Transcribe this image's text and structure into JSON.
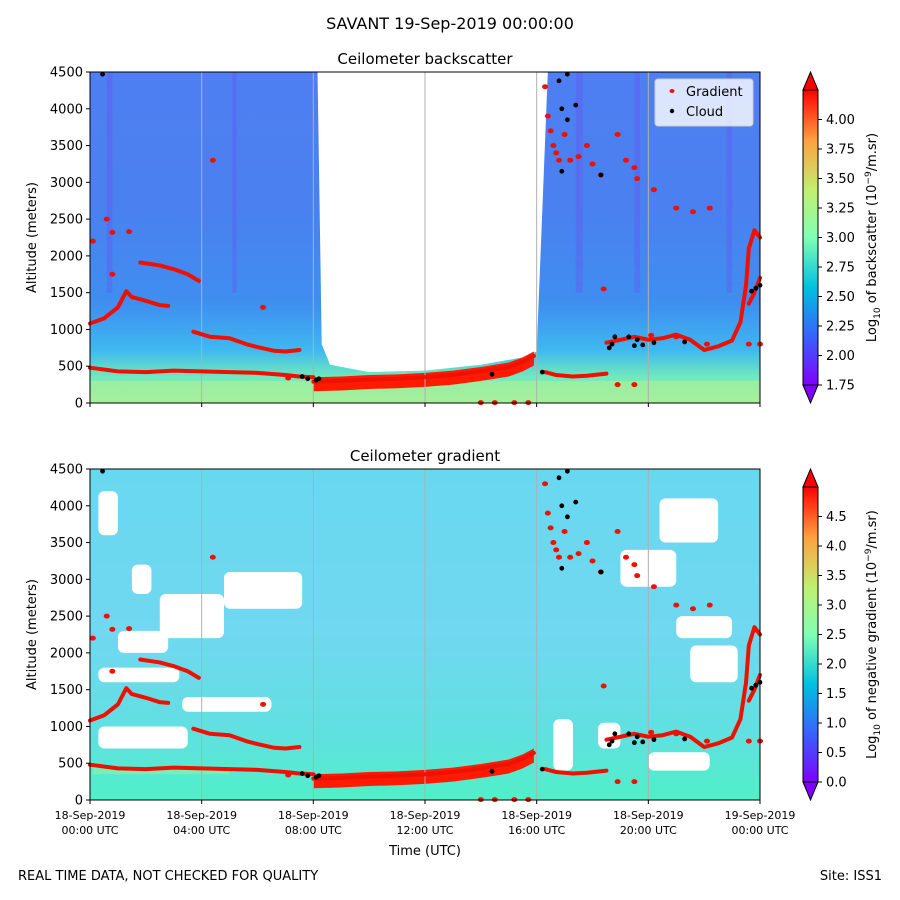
{
  "figure": {
    "suptitle": "SAVANT 19-Sep-2019 00:00:00",
    "footer_left": "REAL TIME DATA, NOT CHECKED FOR QUALITY",
    "footer_right": "Site: ISS1"
  },
  "chart_data": [
    {
      "type": "heatmap",
      "title": "Ceilometer backscatter",
      "xlabel": "Time (UTC)",
      "ylabel": "Altitude (meters)",
      "x_ticks": [
        "18-Sep-2019\n00:00 UTC",
        "18-Sep-2019\n04:00 UTC",
        "18-Sep-2019\n08:00 UTC",
        "18-Sep-2019\n12:00 UTC",
        "18-Sep-2019\n16:00 UTC",
        "18-Sep-2019\n20:00 UTC",
        "19-Sep-2019\n00:00 UTC"
      ],
      "xlim_hours": [
        0,
        24
      ],
      "ylim": [
        0,
        4500
      ],
      "y_ticks": [
        0,
        500,
        1000,
        1500,
        2000,
        2500,
        3000,
        3500,
        4000,
        4500
      ],
      "grid": "vertical lines at x ticks",
      "legend": {
        "position": "top-right",
        "entries": [
          "Gradient",
          "Cloud"
        ]
      },
      "colorbar": {
        "label": "Log10 of backscatter (10^-9/m.sr)",
        "label_main": "Log",
        "label_sub": "10",
        "label_rest": " of backscatter (10",
        "label_sup": "−9",
        "label_end": "/m.sr)",
        "min": 1.75,
        "max": 4.25,
        "ticks": [
          "1.75",
          "2.00",
          "2.25",
          "2.50",
          "2.75",
          "3.00",
          "3.25",
          "3.50",
          "3.75",
          "4.00"
        ],
        "tick_values": [
          1.75,
          2.0,
          2.25,
          2.5,
          2.75,
          3.0,
          3.25,
          3.5,
          3.75,
          4.0
        ]
      },
      "blank_region": {
        "x_start_h": 8.15,
        "x_end_h": 16.4,
        "lower_edge_m": [
          [
            8.15,
            4500
          ],
          [
            8.3,
            800
          ],
          [
            8.6,
            520
          ],
          [
            10,
            420
          ],
          [
            12,
            440
          ],
          [
            14,
            520
          ],
          [
            15.5,
            620
          ],
          [
            16.0,
            700
          ],
          [
            16.4,
            4500
          ]
        ]
      },
      "gradient_series": [
        {
          "name": "Gradient layer 1",
          "points": [
            [
              0,
              480
            ],
            [
              1,
              430
            ],
            [
              2,
              420
            ],
            [
              3,
              440
            ],
            [
              4,
              430
            ],
            [
              5,
              420
            ],
            [
              6,
              410
            ],
            [
              7,
              380
            ],
            [
              7.5,
              360
            ],
            [
              8,
              350
            ]
          ]
        },
        {
          "name": "Gradient layer 2",
          "points": [
            [
              0,
              1080
            ],
            [
              0.5,
              1150
            ],
            [
              1,
              1300
            ],
            [
              1.3,
              1520
            ],
            [
              1.5,
              1440
            ],
            [
              2,
              1390
            ],
            [
              2.5,
              1330
            ],
            [
              2.8,
              1320
            ]
          ]
        },
        {
          "name": "Gradient layer 3",
          "points": [
            [
              1.8,
              1910
            ],
            [
              2.5,
              1870
            ],
            [
              3,
              1820
            ],
            [
              3.5,
              1750
            ],
            [
              3.9,
              1660
            ]
          ]
        },
        {
          "name": "Gradient layer 4",
          "points": [
            [
              3.7,
              970
            ],
            [
              4.3,
              900
            ],
            [
              5,
              880
            ],
            [
              5.6,
              800
            ],
            [
              6,
              760
            ],
            [
              6.6,
              710
            ],
            [
              7,
              700
            ],
            [
              7.5,
              720
            ]
          ]
        },
        {
          "name": "Boundary layer",
          "points": [
            [
              8,
              290
            ],
            [
              9,
              300
            ],
            [
              10,
              320
            ],
            [
              11,
              330
            ],
            [
              12,
              350
            ],
            [
              13,
              380
            ],
            [
              14,
              430
            ],
            [
              14.5,
              460
            ],
            [
              15,
              490
            ],
            [
              15.5,
              560
            ],
            [
              15.9,
              640
            ]
          ]
        },
        {
          "name": "Gradient layer 5",
          "points": [
            [
              16.3,
              420
            ],
            [
              16.7,
              380
            ],
            [
              17.3,
              360
            ],
            [
              17.8,
              370
            ],
            [
              18.5,
              400
            ]
          ]
        },
        {
          "name": "Gradient layer 6",
          "points": [
            [
              18.5,
              820
            ],
            [
              19,
              860
            ],
            [
              19.5,
              900
            ],
            [
              20,
              860
            ],
            [
              20.5,
              880
            ],
            [
              21,
              930
            ],
            [
              21.5,
              860
            ],
            [
              22,
              720
            ],
            [
              22.5,
              770
            ],
            [
              23,
              850
            ],
            [
              23.3,
              1100
            ],
            [
              23.5,
              1600
            ],
            [
              23.6,
              2100
            ],
            [
              23.8,
              2350
            ],
            [
              24,
              2250
            ]
          ]
        },
        {
          "name": "Gradient layer 7",
          "points": [
            [
              23.6,
              1350
            ],
            [
              23.8,
              1500
            ],
            [
              24,
              1700
            ]
          ]
        }
      ],
      "gradient_scatter": [
        [
          0.1,
          2200
        ],
        [
          0.6,
          2500
        ],
        [
          0.8,
          2320
        ],
        [
          1.4,
          2330
        ],
        [
          0.8,
          1750
        ],
        [
          4.4,
          3300
        ],
        [
          6.2,
          1300
        ],
        [
          7.1,
          340
        ],
        [
          16.3,
          4300
        ],
        [
          16.4,
          3900
        ],
        [
          16.5,
          3700
        ],
        [
          16.6,
          3500
        ],
        [
          16.7,
          3400
        ],
        [
          16.8,
          3300
        ],
        [
          17.0,
          3650
        ],
        [
          17.2,
          3300
        ],
        [
          17.5,
          3350
        ],
        [
          17.8,
          3500
        ],
        [
          18,
          3250
        ],
        [
          18.3,
          3100
        ],
        [
          18.4,
          1550
        ],
        [
          18.9,
          3650
        ],
        [
          19.2,
          3300
        ],
        [
          19.5,
          3200
        ],
        [
          19.6,
          3050
        ],
        [
          20.2,
          2900
        ],
        [
          21,
          2650
        ],
        [
          21.6,
          2600
        ],
        [
          22.2,
          2650
        ],
        [
          15.7,
          5
        ],
        [
          15.2,
          5
        ],
        [
          14.5,
          5
        ],
        [
          14.0,
          5
        ],
        [
          18.9,
          250
        ],
        [
          19.5,
          250
        ],
        [
          20.1,
          920
        ],
        [
          21,
          900
        ],
        [
          22.1,
          800
        ],
        [
          23.6,
          800
        ],
        [
          24,
          800
        ]
      ],
      "cloud_scatter": [
        [
          0.45,
          4470
        ],
        [
          7.6,
          360
        ],
        [
          7.8,
          330
        ],
        [
          8.1,
          310
        ],
        [
          8.2,
          330
        ],
        [
          14.4,
          390
        ],
        [
          16.2,
          420
        ],
        [
          16.8,
          4380
        ],
        [
          17.1,
          4470
        ],
        [
          16.9,
          4000
        ],
        [
          17.1,
          3850
        ],
        [
          17.4,
          4050
        ],
        [
          16.9,
          3150
        ],
        [
          18.3,
          3100
        ],
        [
          18.6,
          750
        ],
        [
          18.7,
          800
        ],
        [
          18.8,
          900
        ],
        [
          19.3,
          900
        ],
        [
          19.5,
          780
        ],
        [
          19.6,
          860
        ],
        [
          19.8,
          790
        ],
        [
          20.2,
          820
        ],
        [
          21.3,
          830
        ],
        [
          23.7,
          1520
        ],
        [
          23.85,
          1560
        ],
        [
          24,
          1600
        ]
      ]
    },
    {
      "type": "heatmap",
      "title": "Ceilometer gradient",
      "xlabel": "Time (UTC)",
      "ylabel": "Altitude (meters)",
      "x_ticks": [
        "18-Sep-2019\n00:00 UTC",
        "18-Sep-2019\n04:00 UTC",
        "18-Sep-2019\n08:00 UTC",
        "18-Sep-2019\n12:00 UTC",
        "18-Sep-2019\n16:00 UTC",
        "18-Sep-2019\n20:00 UTC",
        "19-Sep-2019\n00:00 UTC"
      ],
      "xlim_hours": [
        0,
        24
      ],
      "ylim": [
        0,
        4500
      ],
      "y_ticks": [
        0,
        500,
        1000,
        1500,
        2000,
        2500,
        3000,
        3500,
        4000,
        4500
      ],
      "grid": "vertical lines at x ticks",
      "colorbar": {
        "label": "Log10 of negative gradient (10^-9/m.sr)",
        "label_main": "Log",
        "label_sub": "10",
        "label_rest": " of negative gradient (10",
        "label_sup": "−9",
        "label_end": "/m.sr)",
        "min": 0.0,
        "max": 5.0,
        "ticks": [
          "0.0",
          "0.5",
          "1.0",
          "1.5",
          "2.0",
          "2.5",
          "3.0",
          "3.5",
          "4.0",
          "4.5"
        ],
        "tick_values": [
          0.0,
          0.5,
          1.0,
          1.5,
          2.0,
          2.5,
          3.0,
          3.5,
          4.0,
          4.5
        ]
      }
    }
  ]
}
